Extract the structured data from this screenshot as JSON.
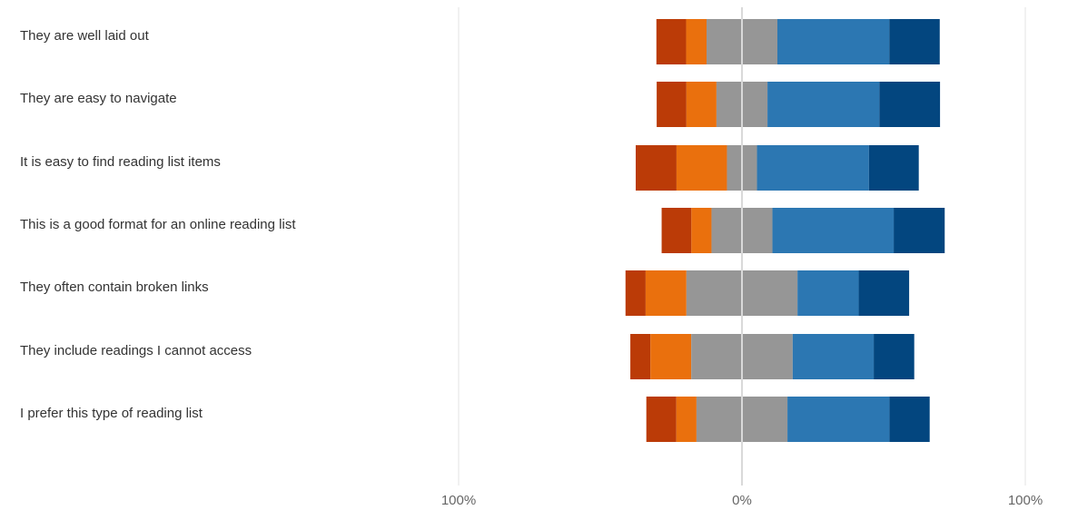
{
  "chart_data": {
    "type": "bar",
    "subtype": "diverging-stacked-bar",
    "title": "",
    "xlabel": "",
    "ylabel": "",
    "xlim": [
      -100,
      100
    ],
    "grid": true,
    "legend": "none",
    "x_ticks": [
      "100%",
      "0%",
      "100%"
    ],
    "categories": [
      "They are well laid out",
      "They are easy to navigate",
      "It is easy to find reading list items",
      "This is a good format for an online reading list",
      "They often contain broken links",
      "They include readings I cannot access",
      "I prefer this type of reading list"
    ],
    "series": [
      {
        "values": [
          10.5,
          10.5,
          14.4,
          10.5,
          7.1,
          7.1,
          10.6
        ],
        "color": "#bb3b07",
        "side": "negative"
      },
      {
        "values": [
          7.2,
          10.6,
          17.8,
          7.1,
          14.4,
          14.4,
          7.1
        ],
        "color": "#ea700d",
        "side": "negative"
      },
      {
        "values": [
          25.0,
          18.0,
          10.6,
          21.5,
          39.2,
          35.8,
          32.1
        ],
        "color": "#969696",
        "side": "neutral"
      },
      {
        "values": [
          39.5,
          39.5,
          39.5,
          42.8,
          21.6,
          28.6,
          36.0
        ],
        "color": "#2c77b2",
        "side": "positive"
      },
      {
        "values": [
          17.8,
          21.4,
          17.6,
          18.0,
          17.8,
          14.3,
          14.2
        ],
        "color": "#03467f",
        "side": "positive"
      }
    ]
  }
}
